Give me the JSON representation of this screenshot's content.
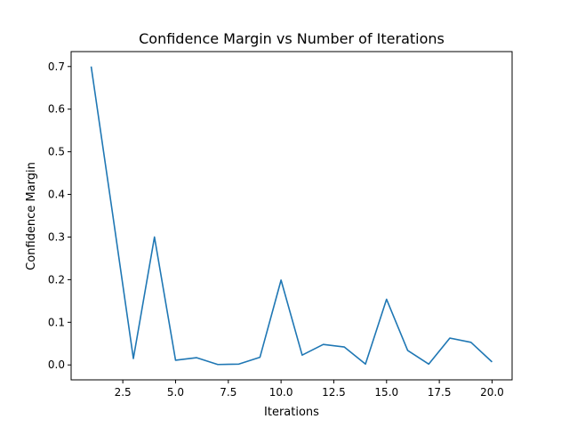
{
  "chart_data": {
    "type": "line",
    "title": "Confidence Margin vs Number of Iterations",
    "xlabel": "Iterations",
    "ylabel": "Confidence Margin",
    "xlim": [
      0.05,
      20.95
    ],
    "ylim": [
      -0.035,
      0.735
    ],
    "xticks": [
      2.5,
      5.0,
      7.5,
      10.0,
      12.5,
      15.0,
      17.5,
      20.0
    ],
    "xtick_labels": [
      "2.5",
      "5.0",
      "7.5",
      "10.0",
      "12.5",
      "15.0",
      "17.5",
      "20.0"
    ],
    "yticks": [
      0.0,
      0.1,
      0.2,
      0.3,
      0.4,
      0.5,
      0.6,
      0.7
    ],
    "ytick_labels": [
      "0.0",
      "0.1",
      "0.2",
      "0.3",
      "0.4",
      "0.5",
      "0.6",
      "0.7"
    ],
    "grid": false,
    "series": [
      {
        "color": "#1f77b4",
        "x": [
          1,
          2,
          3,
          4,
          5,
          6,
          7,
          8,
          9,
          10,
          11,
          12,
          13,
          14,
          15,
          16,
          17,
          18,
          19,
          20
        ],
        "y": [
          0.7,
          0.36,
          0.015,
          0.3,
          0.011,
          0.017,
          0.001,
          0.002,
          0.018,
          0.199,
          0.023,
          0.048,
          0.042,
          0.002,
          0.154,
          0.034,
          0.002,
          0.063,
          0.053,
          0.007
        ]
      }
    ]
  }
}
